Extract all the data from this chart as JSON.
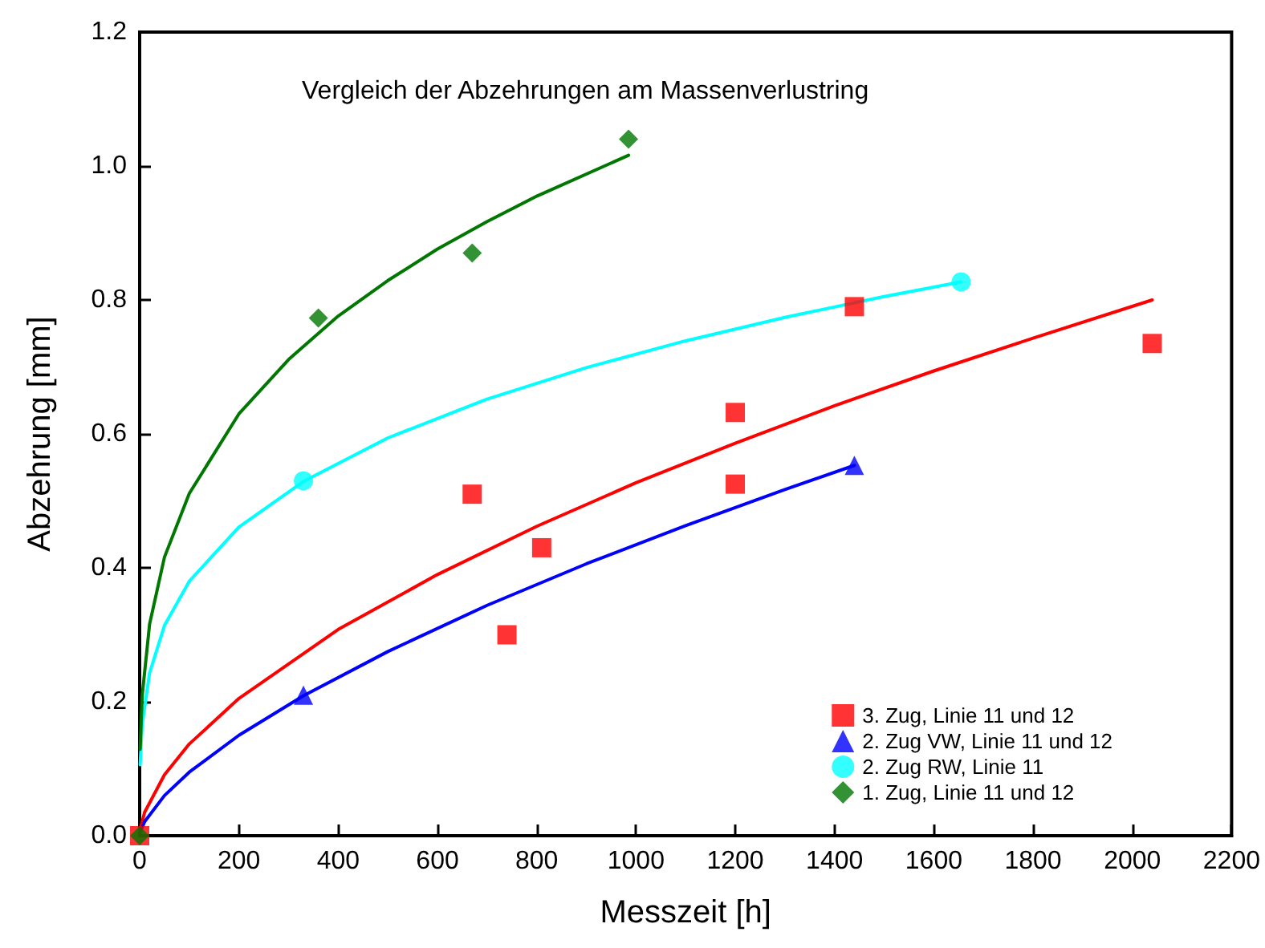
{
  "chart_data": {
    "type": "scatter",
    "title": "Vergleich der Abzehrungen am Massenverlustring",
    "xlabel": "Messzeit [h]",
    "ylabel": "Abzehrung [mm]",
    "xlim": [
      0,
      2200
    ],
    "xticks": [
      0,
      200,
      400,
      600,
      800,
      1000,
      1200,
      1400,
      1600,
      1800,
      2000,
      2200
    ],
    "ylim": [
      0,
      1.2
    ],
    "yticks": [
      {
        "value": 0,
        "label": "0.0"
      },
      {
        "value": 0.2,
        "label": "0.2"
      },
      {
        "value": 0.4,
        "label": "0.4"
      },
      {
        "value": 0.6,
        "label": "0.6"
      },
      {
        "value": 0.8,
        "label": "0.8"
      },
      {
        "value": 1.0,
        "label": "1.0"
      },
      {
        "value": 1.2,
        "label": "1.2"
      }
    ],
    "grid": false,
    "legend": "bottom right",
    "series": [
      {
        "name": "3. Zug, Linie 11 und 12",
        "marker": "square",
        "color": "#ff0000",
        "x": [
          0,
          670,
          740,
          810,
          1200,
          1200,
          1440,
          2040
        ],
        "values": [
          0,
          0.51,
          0.3,
          0.43,
          0.632,
          0.525,
          0.79,
          0.735
        ]
      },
      {
        "name": "2. Zug VW, Linie 11 und 12",
        "marker": "triangle",
        "color": "#0000ff",
        "x": [
          330,
          1440
        ],
        "values": [
          0.21,
          0.553
        ]
      },
      {
        "name": "2. Zug RW, Linie 11",
        "marker": "circle",
        "color": "#00ffff",
        "x": [
          330,
          1655
        ],
        "values": [
          0.53,
          0.827
        ]
      },
      {
        "name": "1. Zug, Linie 11 und 12",
        "marker": "diamond",
        "color": "#007700",
        "x": [
          0,
          360,
          670,
          985
        ],
        "values": [
          0,
          0.773,
          0.87,
          1.04
        ]
      },
      {
        "type": "line",
        "marker": "none",
        "color": "#ff0000",
        "x": [
          1,
          10,
          50,
          100,
          200,
          400,
          600,
          800,
          1000,
          1200,
          1400,
          1600,
          1800,
          2040
        ],
        "values": [
          0.009,
          0.035,
          0.091,
          0.137,
          0.205,
          0.308,
          0.39,
          0.462,
          0.527,
          0.586,
          0.642,
          0.694,
          0.743,
          0.8
        ]
      },
      {
        "type": "line",
        "marker": "none",
        "color": "#0000ff",
        "x": [
          1,
          10,
          50,
          100,
          200,
          330,
          500,
          700,
          900,
          1100,
          1300,
          1440
        ],
        "values": [
          0.005,
          0.021,
          0.06,
          0.095,
          0.15,
          0.209,
          0.275,
          0.344,
          0.406,
          0.463,
          0.517,
          0.553
        ]
      },
      {
        "type": "line",
        "marker": "none",
        "color": "#00ffff",
        "x": [
          1,
          5,
          20,
          50,
          100,
          200,
          330,
          500,
          700,
          900,
          1100,
          1300,
          1500,
          1655
        ],
        "values": [
          0.106,
          0.166,
          0.243,
          0.314,
          0.38,
          0.461,
          0.529,
          0.594,
          0.652,
          0.699,
          0.739,
          0.774,
          0.805,
          0.827
        ]
      },
      {
        "type": "line",
        "marker": "none",
        "color": "#007700",
        "x": [
          1,
          5,
          20,
          50,
          100,
          200,
          300,
          400,
          500,
          600,
          700,
          800,
          985
        ],
        "values": [
          0.129,
          0.208,
          0.316,
          0.416,
          0.511,
          0.63,
          0.711,
          0.776,
          0.829,
          0.876,
          0.917,
          0.955,
          1.016
        ]
      }
    ]
  }
}
